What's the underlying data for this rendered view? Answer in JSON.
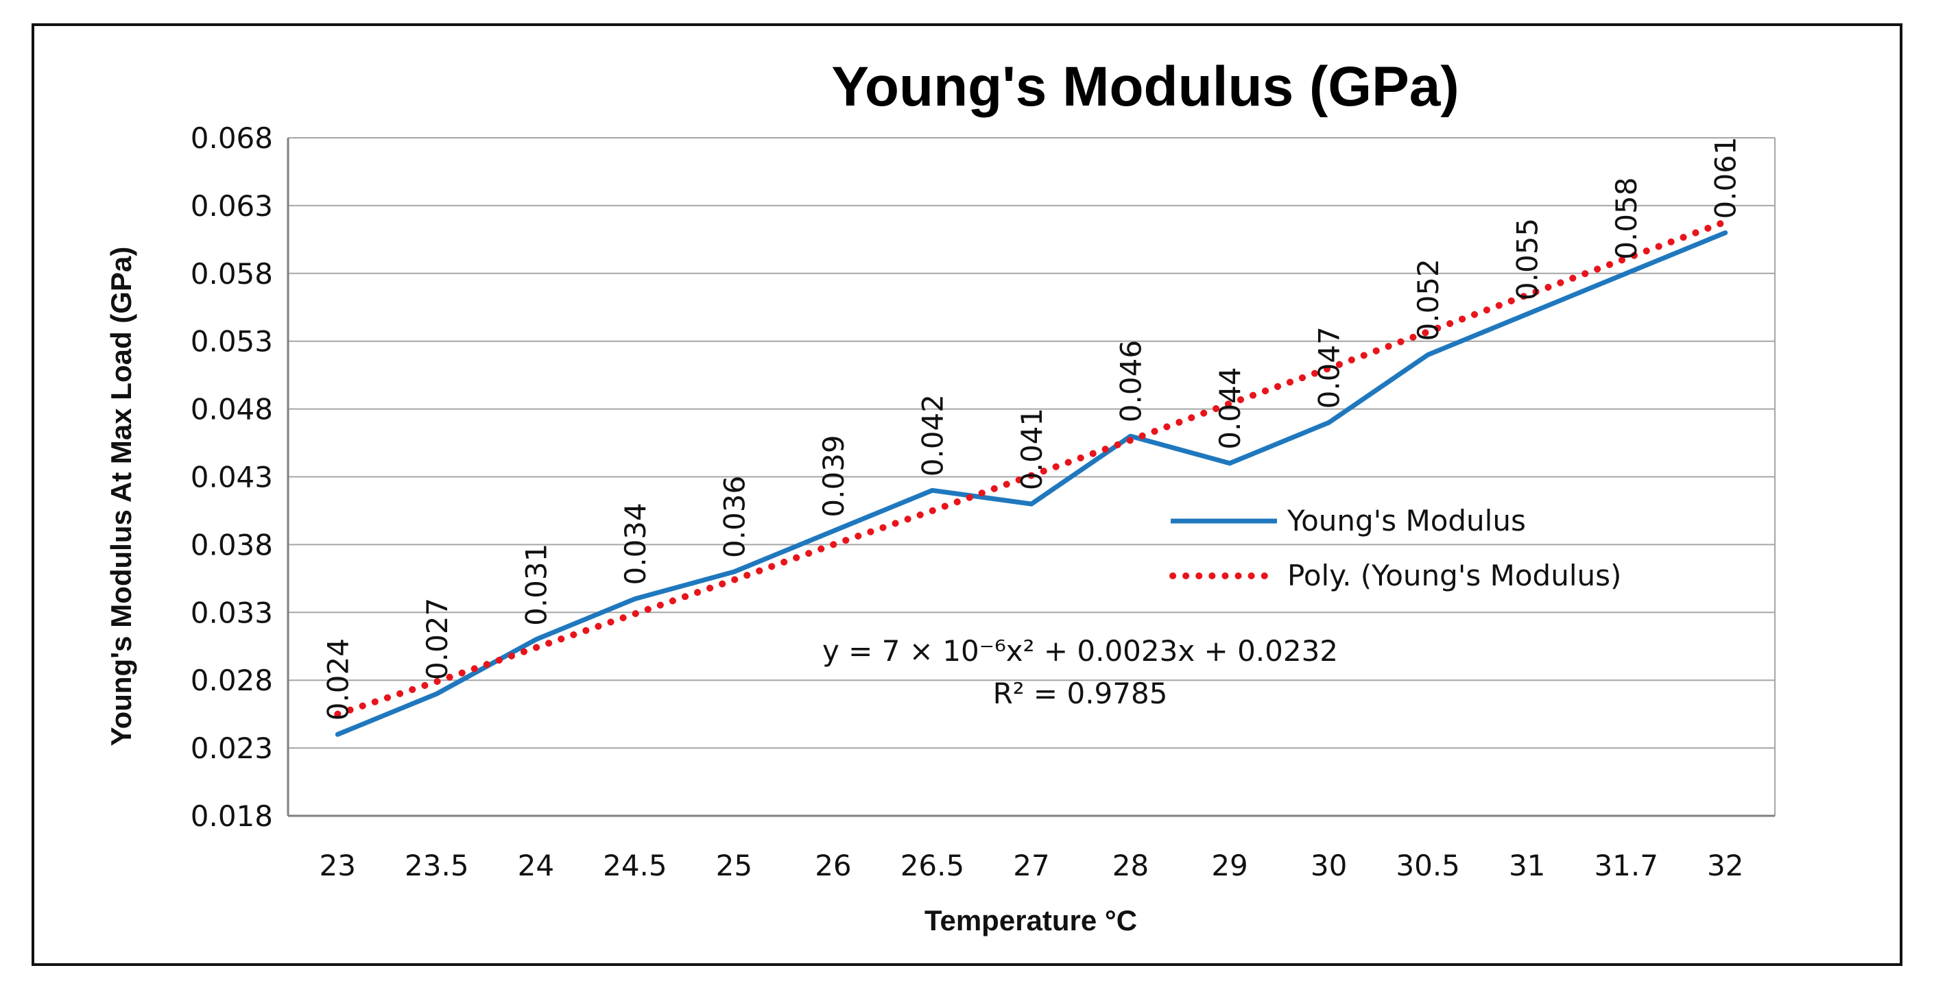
{
  "chart_data": {
    "type": "line",
    "title": "Young's Modulus (GPa)",
    "xlabel": "Temperature °C",
    "ylabel": "Young's Modulus At Max Load (GPa)",
    "categories": [
      "23",
      "23.5",
      "24",
      "24.5",
      "25",
      "26",
      "26.5",
      "27",
      "28",
      "29",
      "30",
      "30.5",
      "31",
      "31.7",
      "32"
    ],
    "ylim": [
      0.018,
      0.068
    ],
    "yticks": [
      "0.018",
      "0.023",
      "0.028",
      "0.033",
      "0.038",
      "0.043",
      "0.048",
      "0.053",
      "0.058",
      "0.063",
      "0.068"
    ],
    "grid": true,
    "series": [
      {
        "name": "Young's Modulus",
        "values": [
          0.024,
          0.027,
          0.031,
          0.034,
          0.036,
          0.039,
          0.042,
          0.041,
          0.046,
          0.044,
          0.047,
          0.052,
          0.055,
          0.058,
          0.061
        ],
        "data_labels": [
          "0.024",
          "0.027",
          "0.031",
          "0.034",
          "0.036",
          "0.039",
          "0.042",
          "0.041",
          "0.046",
          "0.044",
          "0.047",
          "0.052",
          "0.055",
          "0.058",
          "0.061"
        ],
        "color": "#1f78be",
        "style": "solid"
      },
      {
        "name": "Poly. (Young's Modulus)",
        "values": [
          0.0255,
          0.0279,
          0.0304,
          0.0329,
          0.0354,
          0.038,
          0.0405,
          0.0431,
          0.0457,
          0.0484,
          0.051,
          0.0537,
          0.0564,
          0.0591,
          0.0618
        ],
        "color": "#e8141c",
        "style": "dotted"
      }
    ],
    "legend": {
      "position": "center-right",
      "entries": [
        "Young's Modulus",
        "Poly. (Young's Modulus)"
      ]
    },
    "annotation": {
      "equation": "y = 7 × 10⁻⁶x² + 0.0023x + 0.0232",
      "r_squared": "R² = 0.9785"
    },
    "colors": {
      "grid": "#a6a6a6",
      "axis": "#7f7f7f",
      "text": "#111111"
    }
  }
}
